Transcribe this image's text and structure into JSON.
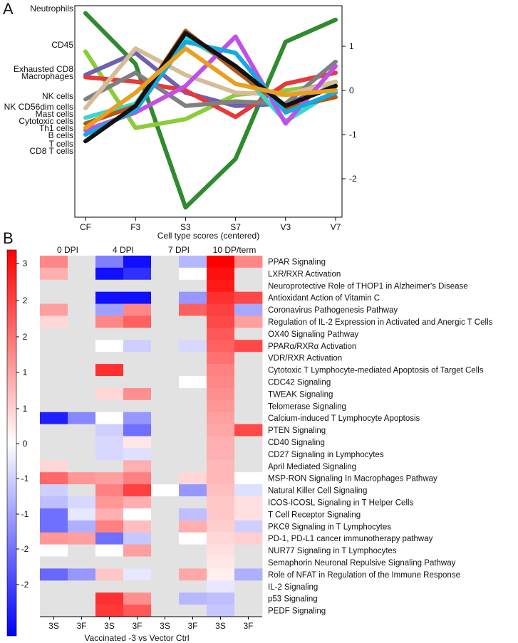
{
  "panel_labels": {
    "a": "A",
    "b": "B"
  },
  "chart_data": [
    {
      "type": "line",
      "panel": "A",
      "title": "",
      "xlabel": "Cell type scores (centered)",
      "ylabel": "",
      "categories": [
        "CF",
        "F3",
        "S3",
        "S7",
        "V3",
        "V7"
      ],
      "ylim": [
        -2.8,
        1.8
      ],
      "yticks": [
        -2,
        -1,
        0,
        1
      ],
      "left_labels": [
        "Neutrophils",
        "CD45",
        "Exhausted CD8",
        "Macrophages",
        "NK cells",
        "NK CD56dim cells",
        "Mast cells",
        "Cytotoxic cells",
        "Th1 cells",
        "B cells",
        "T cells",
        "CD8 T cells"
      ],
      "series": [
        {
          "name": "Neutrophils",
          "color": "#2e8b2e",
          "values": [
            1.75,
            0.6,
            -2.65,
            -1.55,
            1.1,
            1.6
          ]
        },
        {
          "name": "CD45",
          "color": "#8ccc3a",
          "values": [
            0.88,
            -0.85,
            -0.65,
            -0.1,
            0.0,
            0.15
          ]
        },
        {
          "name": "Exhausted CD8",
          "color": "#6e62b0",
          "values": [
            0.35,
            0.85,
            -0.05,
            -0.35,
            -0.3,
            0.1
          ]
        },
        {
          "name": "Macrophages",
          "color": "#e83838",
          "values": [
            0.3,
            0.2,
            0.0,
            -0.6,
            0.15,
            0.4
          ]
        },
        {
          "name": "NK cells",
          "color": "#808080",
          "values": [
            -0.2,
            0.4,
            -0.35,
            -0.25,
            -0.3,
            0.65
          ]
        },
        {
          "name": "NK CD56dim cells",
          "color": "#d6bc98",
          "values": [
            -0.4,
            0.95,
            0.35,
            -0.05,
            -0.1,
            0.2
          ]
        },
        {
          "name": "Mast cells",
          "color": "#3ad6d0",
          "values": [
            -0.62,
            -0.3,
            1.2,
            0.55,
            -0.7,
            0.0
          ]
        },
        {
          "name": "Cytotoxic cells",
          "color": "#b05a18",
          "values": [
            -0.75,
            -0.35,
            1.35,
            0.45,
            -0.4,
            -0.15
          ]
        },
        {
          "name": "Th1 cells",
          "color": "#c050e8",
          "values": [
            -0.9,
            -0.5,
            0.1,
            1.22,
            -0.75,
            0.55
          ]
        },
        {
          "name": "B cells",
          "color": "#18a8e0",
          "values": [
            -1.0,
            -0.45,
            1.1,
            0.85,
            -0.5,
            -0.05
          ]
        },
        {
          "name": "T cells",
          "color": "#111111",
          "values": [
            -1.15,
            -0.35,
            1.3,
            0.55,
            -0.35,
            0.1
          ]
        },
        {
          "name": "CD8 T cells",
          "color": "#e8a020",
          "values": [
            -0.85,
            -0.05,
            0.95,
            0.15,
            -0.1,
            0.0
          ]
        }
      ]
    },
    {
      "type": "heatmap",
      "panel": "B",
      "title": "",
      "xlabel": "Vaccinated -3 vs Vector Ctrl",
      "group_labels": [
        "0 DPI",
        "4 DPI",
        "7 DPI",
        "10 DP/term"
      ],
      "columns": [
        "3S",
        "3F",
        "3S",
        "3F",
        "3S",
        "3F",
        "3S",
        "3F"
      ],
      "colorbar_ticks": [
        "3",
        "2",
        "2",
        "1",
        "1",
        "0",
        "-1",
        "-1",
        "-2",
        "-2"
      ],
      "value_range": [
        -3.2,
        3.2
      ],
      "missing_color": "#e2e2e2",
      "rows": [
        "PPAR Signaling",
        "LXR/RXR Activation",
        "Neuroprotective Role of THOP1 in Alzheimer's Disease",
        "Antioxidant Action of Vitamin C",
        "Coronavirus Pathogenesis Pathway",
        "Regulation of IL-2 Expression in Activated and Anergic T Cells",
        "OX40 Signaling Pathway",
        "PPARα/RXRα Activation",
        "VDR/RXR Activation",
        "Cytotoxic T Lymphocyte-mediated Apoptosis of Target Cells",
        "CDC42 Signaling",
        "TWEAK Signaling",
        "Telomerase Signaling",
        "Calcium-induced T Lymphocyte Apoptosis",
        "PTEN Signaling",
        "CD40 Signaling",
        "CD27 Signaling in Lymphocytes",
        "April Mediated Signaling",
        "MSP-RON Signaling In Macrophages Pathway",
        "Natural Killer Cell Signaling",
        "ICOS-ICOSL Signaling in T Helper Cells",
        "T Cell Receptor Signaling",
        "PKCθ Signaling in T Lymphocytes",
        "PD-1, PD-L1 cancer immunotherapy pathway",
        "NUR77 Signaling in T Lymphocytes",
        "Semaphorin Neuronal Repulsive Signaling Pathway",
        "Role of NFAT in Regulation of the Immune Response",
        "IL-2 Signaling",
        "p53 Signaling",
        "PEDF Signaling"
      ],
      "values": [
        [
          1.5,
          null,
          -1.6,
          -3.0,
          null,
          -0.9,
          3.2,
          1.5
        ],
        [
          1.0,
          null,
          -3.0,
          -2.6,
          null,
          0.0,
          3.0,
          null
        ],
        [
          null,
          null,
          null,
          null,
          null,
          null,
          2.9,
          null
        ],
        [
          null,
          null,
          -3.0,
          -3.0,
          null,
          -1.3,
          2.6,
          2.3
        ],
        [
          1.2,
          null,
          -1.2,
          1.5,
          null,
          2.0,
          2.4,
          -1.1
        ],
        [
          0.5,
          null,
          1.5,
          2.0,
          null,
          null,
          2.3,
          1.2
        ],
        [
          null,
          null,
          null,
          null,
          null,
          null,
          2.1,
          null
        ],
        [
          null,
          null,
          0.0,
          -0.6,
          null,
          -0.5,
          2.0,
          2.3
        ],
        [
          null,
          null,
          null,
          null,
          null,
          null,
          1.8,
          null
        ],
        [
          null,
          null,
          2.6,
          null,
          null,
          null,
          1.6,
          null
        ],
        [
          null,
          null,
          null,
          null,
          null,
          0.0,
          1.5,
          null
        ],
        [
          null,
          null,
          0.5,
          1.4,
          null,
          null,
          1.4,
          null
        ],
        [
          null,
          null,
          null,
          null,
          null,
          null,
          1.3,
          null
        ],
        [
          -2.8,
          -1.5,
          0.0,
          -1.3,
          null,
          null,
          1.2,
          null
        ],
        [
          null,
          null,
          -0.6,
          -1.8,
          null,
          null,
          1.1,
          2.3
        ],
        [
          null,
          null,
          -0.5,
          0.3,
          null,
          null,
          1.0,
          null
        ],
        [
          null,
          null,
          -0.5,
          -0.4,
          null,
          null,
          1.0,
          null
        ],
        [
          0.5,
          null,
          null,
          1.0,
          null,
          null,
          0.9,
          null
        ],
        [
          1.9,
          1.3,
          1.2,
          1.6,
          null,
          0.5,
          0.9,
          0.0
        ],
        [
          -0.6,
          null,
          1.6,
          2.4,
          0.0,
          -1.3,
          0.8,
          -0.4
        ],
        [
          -0.8,
          -0.5,
          1.3,
          1.0,
          null,
          null,
          0.7,
          0.4
        ],
        [
          -1.8,
          -0.3,
          1.0,
          0.0,
          null,
          -0.8,
          0.7,
          0.4
        ],
        [
          -1.8,
          -1.0,
          1.6,
          0.8,
          null,
          1.0,
          0.6,
          -0.6
        ],
        [
          1.3,
          1.2,
          -1.8,
          -0.7,
          null,
          0.0,
          0.5,
          0.6
        ],
        [
          0.0,
          null,
          0.0,
          1.2,
          null,
          null,
          0.4,
          null
        ],
        [
          null,
          null,
          null,
          null,
          null,
          null,
          0.3,
          null
        ],
        [
          -1.9,
          -1.3,
          0.7,
          -0.3,
          null,
          1.1,
          0.2,
          -1.0
        ],
        [
          null,
          null,
          null,
          null,
          null,
          null,
          -0.3,
          null
        ],
        [
          null,
          null,
          2.6,
          1.4,
          null,
          -0.9,
          -0.8,
          null
        ],
        [
          null,
          null,
          2.5,
          2.1,
          null,
          null,
          -0.7,
          null
        ]
      ]
    }
  ]
}
